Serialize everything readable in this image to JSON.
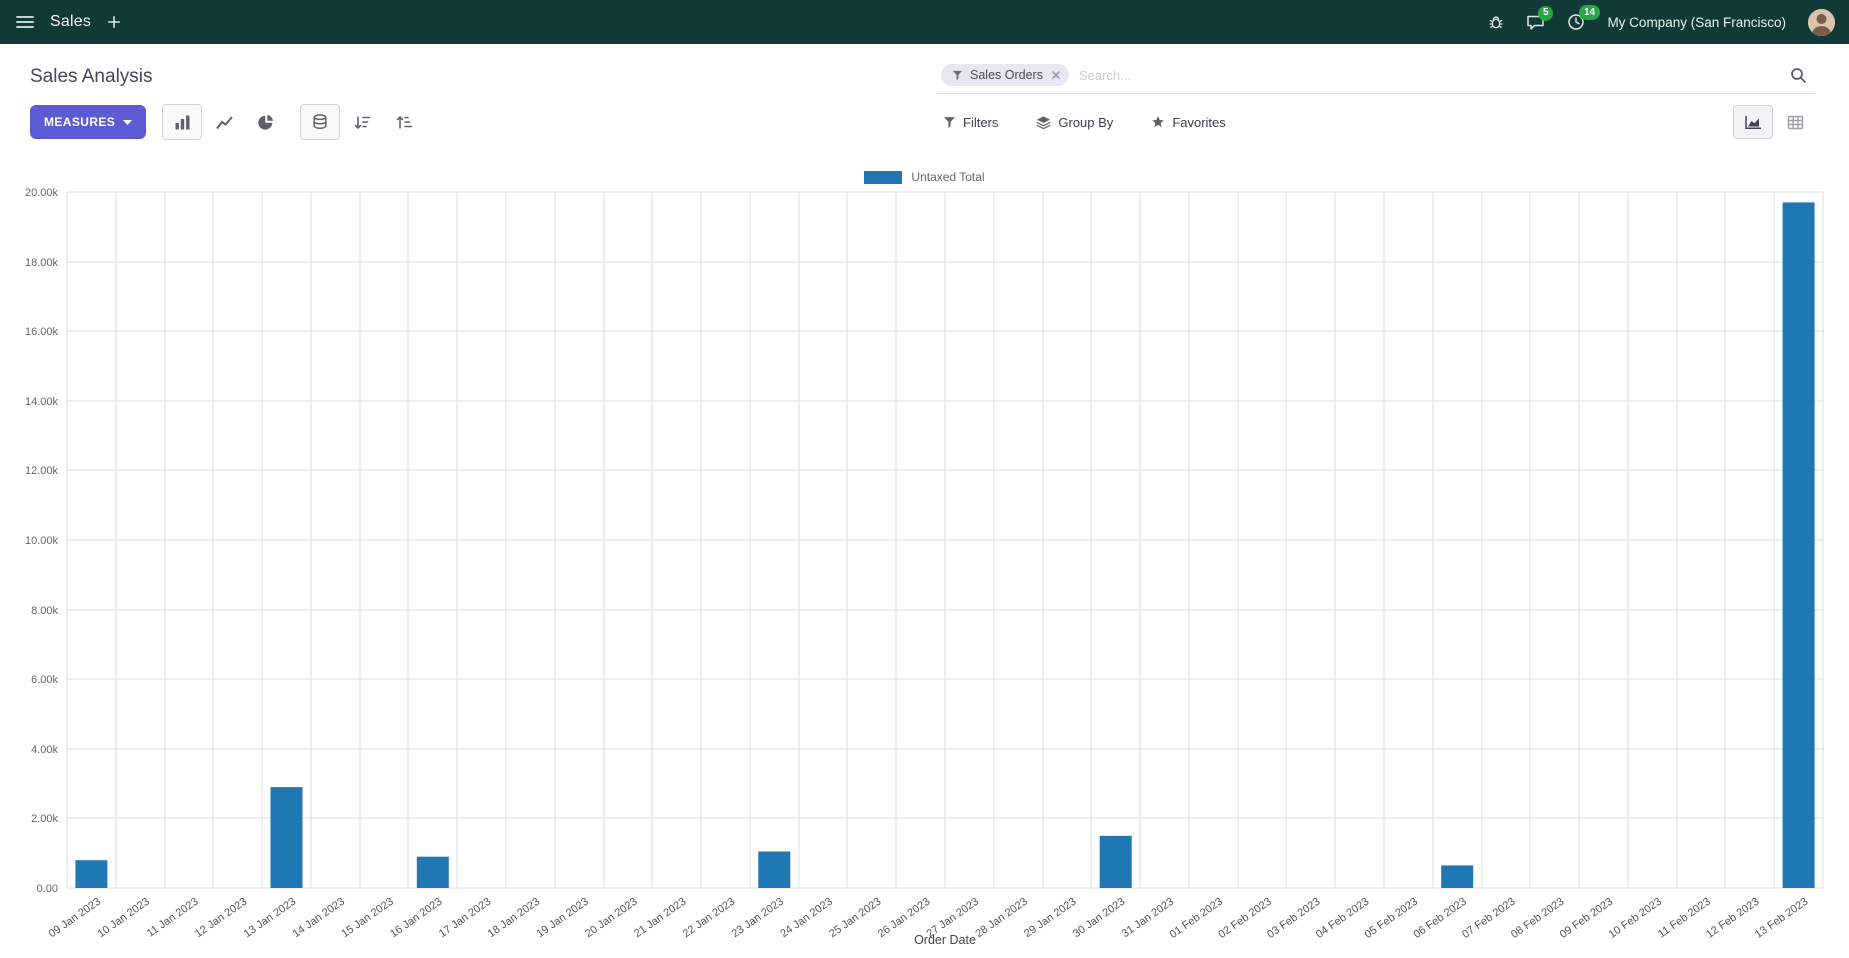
{
  "colors": {
    "navbar_bg": "#0f3a37",
    "primary": "#5d5bd4",
    "chart_bar": "#1f77b4",
    "badge_green": "#28a745"
  },
  "navbar": {
    "app_name": "Sales",
    "message_badge": "5",
    "activity_badge": "14",
    "company": "My Company (San Francisco)"
  },
  "control_panel": {
    "title": "Sales Analysis",
    "measures_label": "MEASURES",
    "filters_label": "Filters",
    "group_by_label": "Group By",
    "favorites_label": "Favorites",
    "search": {
      "facet_label": "Sales Orders",
      "placeholder": "Search..."
    }
  },
  "chart_data": {
    "type": "bar",
    "title": "",
    "legend": [
      {
        "label": "Untaxed Total",
        "color": "#1f77b4"
      }
    ],
    "legend_position": "top",
    "grid": true,
    "xlabel": "Order Date",
    "ylim": [
      0,
      20000
    ],
    "ytick_step": 2000,
    "ytick_labels": [
      "0.00",
      "2.00k",
      "4.00k",
      "6.00k",
      "8.00k",
      "10.00k",
      "12.00k",
      "14.00k",
      "16.00k",
      "18.00k",
      "20.00k"
    ],
    "categories": [
      "09 Jan 2023",
      "10 Jan 2023",
      "11 Jan 2023",
      "12 Jan 2023",
      "13 Jan 2023",
      "14 Jan 2023",
      "15 Jan 2023",
      "16 Jan 2023",
      "17 Jan 2023",
      "18 Jan 2023",
      "19 Jan 2023",
      "20 Jan 2023",
      "21 Jan 2023",
      "22 Jan 2023",
      "23 Jan 2023",
      "24 Jan 2023",
      "25 Jan 2023",
      "26 Jan 2023",
      "27 Jan 2023",
      "28 Jan 2023",
      "29 Jan 2023",
      "30 Jan 2023",
      "31 Jan 2023",
      "01 Feb 2023",
      "02 Feb 2023",
      "03 Feb 2023",
      "04 Feb 2023",
      "05 Feb 2023",
      "06 Feb 2023",
      "07 Feb 2023",
      "08 Feb 2023",
      "09 Feb 2023",
      "10 Feb 2023",
      "11 Feb 2023",
      "12 Feb 2023",
      "13 Feb 2023"
    ],
    "series": [
      {
        "name": "Untaxed Total",
        "color": "#1f77b4",
        "values": [
          800,
          0,
          0,
          0,
          2900,
          0,
          0,
          900,
          0,
          0,
          0,
          0,
          0,
          0,
          1050,
          0,
          0,
          0,
          0,
          0,
          0,
          1500,
          0,
          0,
          0,
          0,
          0,
          0,
          650,
          0,
          0,
          0,
          0,
          0,
          0,
          19700
        ]
      }
    ]
  }
}
